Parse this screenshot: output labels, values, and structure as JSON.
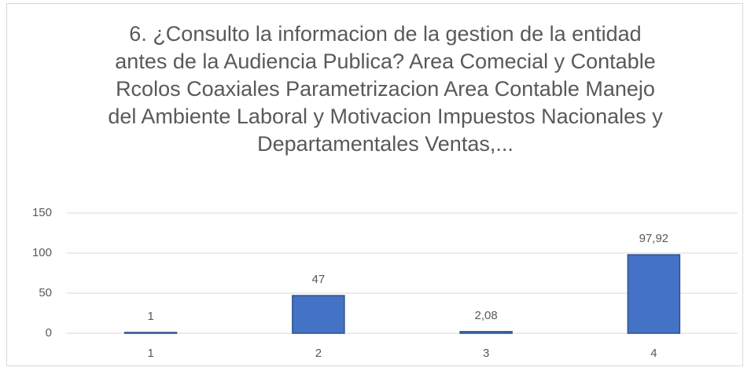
{
  "chart_data": {
    "type": "bar",
    "title": "6. ¿Consulto la informacion de la gestion de la entidad  antes de la Audiencia Publica? Area Comecial  y Contable Rcolos Coaxiales Parametrizacion Area  Contable Manejo del Ambiente Laboral y Motivacion Impuestos Nacionales  y Departamentales Ventas,...",
    "categories": [
      "1",
      "2",
      "3",
      "4"
    ],
    "values": [
      1,
      47,
      2.08,
      97.92
    ],
    "value_labels": [
      "1",
      "47",
      "2,08",
      "97,92"
    ],
    "color": "#4472c4",
    "ylim": [
      0,
      150
    ],
    "yticks": [
      0,
      50,
      100,
      150
    ],
    "grid": true
  }
}
